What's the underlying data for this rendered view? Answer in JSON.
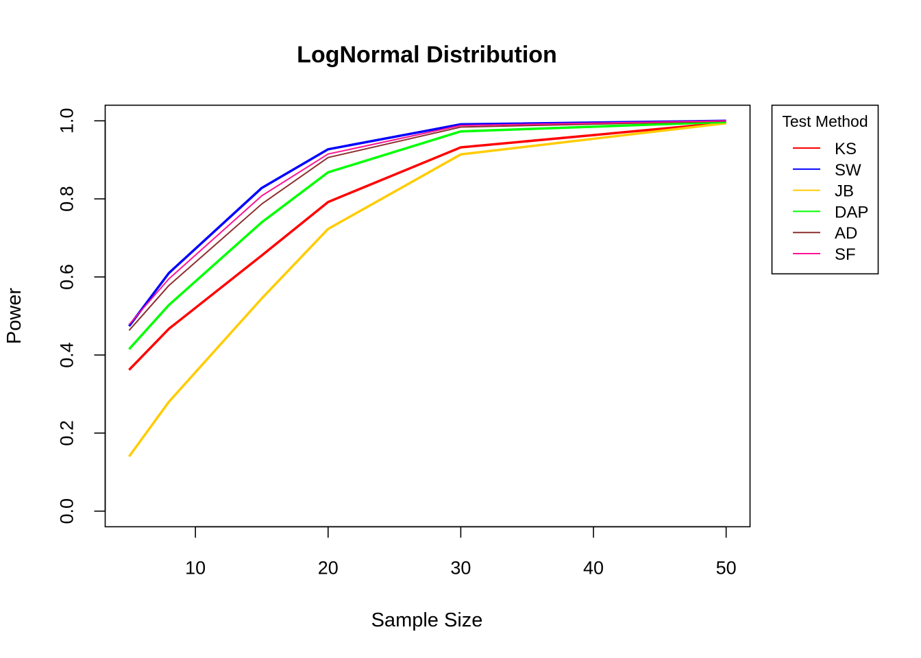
{
  "chart_data": {
    "type": "line",
    "title": "LogNormal Distribution",
    "xlabel": "Sample Size",
    "ylabel": "Power",
    "x": [
      5,
      8,
      15,
      20,
      30,
      50
    ],
    "xlim": [
      3.2,
      51.8
    ],
    "ylim": [
      -0.04,
      1.04
    ],
    "xticks": [
      10,
      20,
      30,
      40,
      50
    ],
    "yticks": [
      0.0,
      0.2,
      0.4,
      0.6,
      0.8,
      1.0
    ],
    "xtick_labels": [
      "10",
      "20",
      "30",
      "40",
      "50"
    ],
    "ytick_labels": [
      "0.0",
      "0.2",
      "0.4",
      "0.6",
      "0.8",
      "1.0"
    ],
    "grid": false,
    "legend": {
      "title": "Test Method",
      "position": "outside-top-right"
    },
    "series": [
      {
        "name": "KS",
        "color": "#ff0000",
        "values": [
          0.362,
          0.467,
          0.655,
          0.792,
          0.932,
          0.995
        ]
      },
      {
        "name": "SW",
        "color": "#0000ff",
        "values": [
          0.474,
          0.61,
          0.828,
          0.927,
          0.991,
          1.0
        ]
      },
      {
        "name": "JB",
        "color": "#ffcc00",
        "values": [
          0.14,
          0.28,
          0.545,
          0.723,
          0.914,
          0.994
        ]
      },
      {
        "name": "DAP",
        "color": "#00ff00",
        "values": [
          0.415,
          0.528,
          0.74,
          0.868,
          0.973,
          0.997
        ]
      },
      {
        "name": "AD",
        "color": "#8b2e2e",
        "values": [
          0.463,
          0.578,
          0.787,
          0.906,
          0.984,
          0.999
        ]
      },
      {
        "name": "SF",
        "color": "#ff1493",
        "values": [
          0.478,
          0.595,
          0.808,
          0.915,
          0.988,
          1.0
        ]
      }
    ]
  }
}
